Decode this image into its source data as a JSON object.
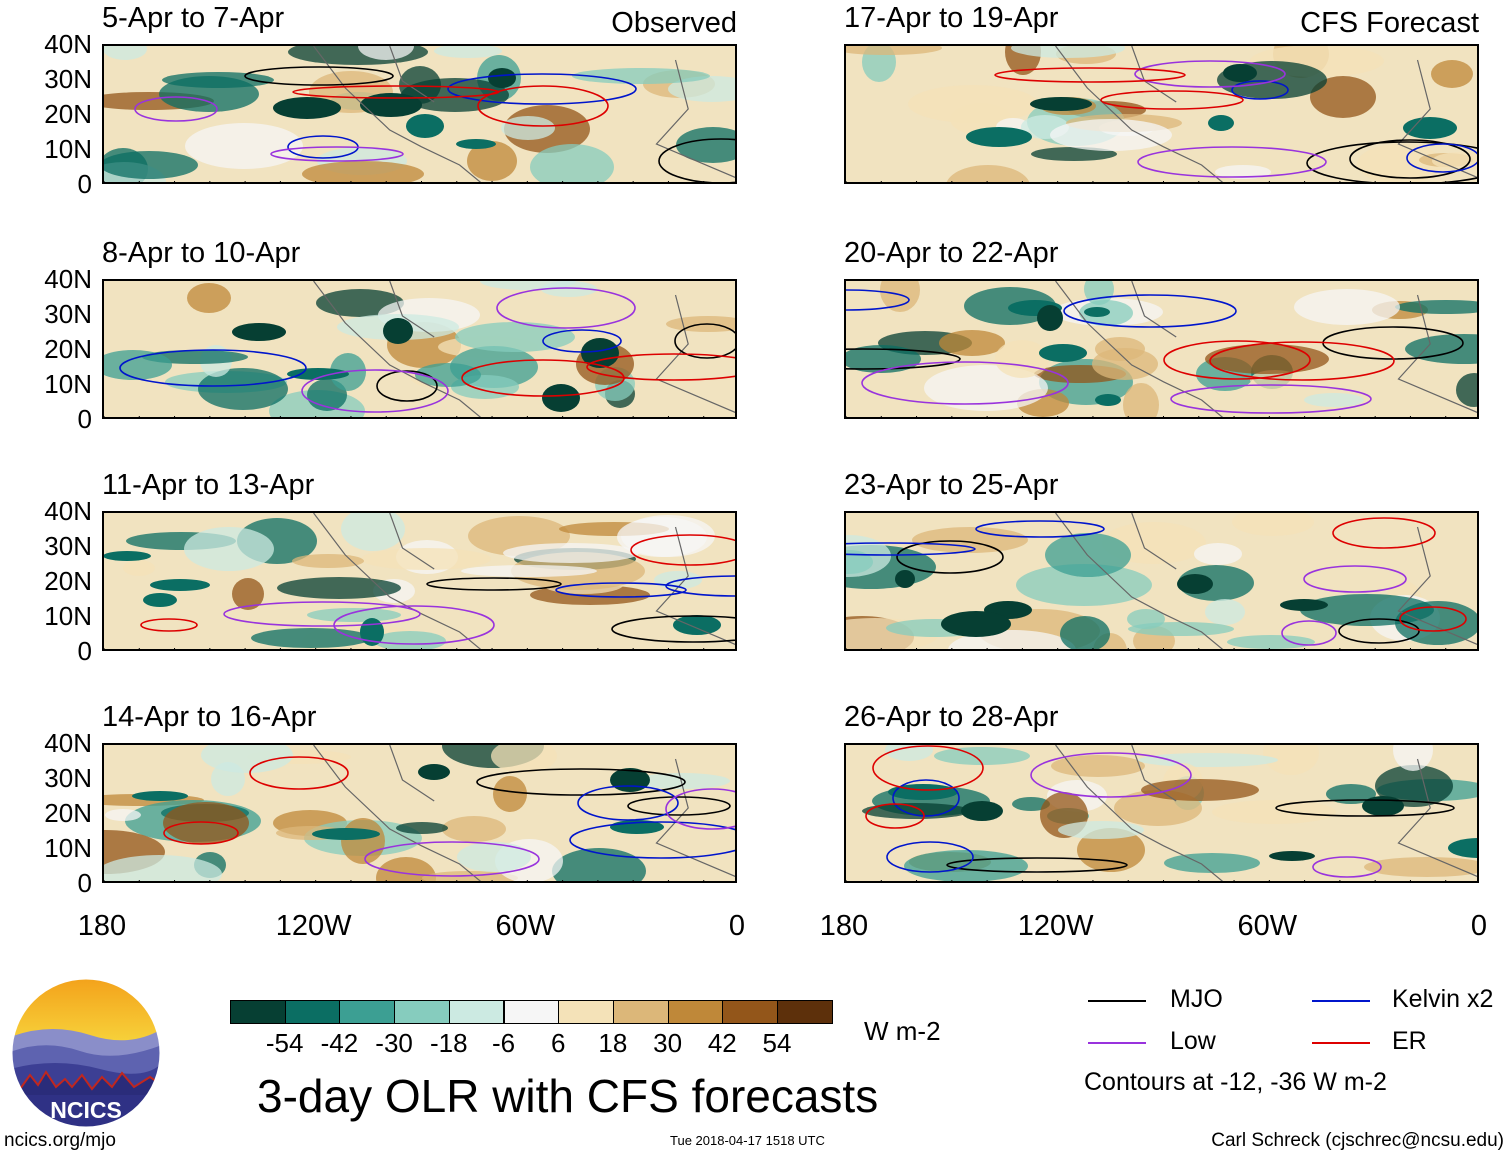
{
  "main_title": "3-day OLR with CFS forecasts",
  "colorbar": {
    "labels": [
      "-54",
      "-42",
      "-30",
      "-18",
      "-6",
      "6",
      "18",
      "30",
      "42",
      "54"
    ],
    "colors": [
      "#063f33",
      "#0b6e63",
      "#3c9f93",
      "#86ccbe",
      "#cceae2",
      "#f6f6f6",
      "#f4e2b8",
      "#dcb779",
      "#bf8839",
      "#93561a",
      "#5d300b"
    ],
    "units": "W m-2"
  },
  "legend": {
    "items": [
      {
        "label": "MJO",
        "color": "#000000"
      },
      {
        "label": "Kelvin x2",
        "color": "#0015cc"
      },
      {
        "label": "Low",
        "color": "#9933dd"
      },
      {
        "label": "ER",
        "color": "#dd0000"
      }
    ],
    "note": "Contours at -12, -36 W m-2"
  },
  "footer": {
    "left": "ncics.org/mjo",
    "center": "Tue 2018-04-17 1518 UTC",
    "right": "Carl Schreck (cjschrec@ncsu.edu)"
  },
  "logo": {
    "text": "NCICS"
  },
  "columns": {
    "left_tag": "Observed",
    "right_tag": "CFS Forecast"
  },
  "axes": {
    "y_ticks": [
      "40N",
      "30N",
      "20N",
      "10N",
      "0"
    ],
    "x_ticks": [
      "180",
      "120W",
      "60W",
      "0"
    ],
    "x_range_lon": [
      -180,
      0
    ],
    "y_range_lat": [
      0,
      40
    ]
  },
  "chart_data": {
    "type": "heatmap",
    "title": "3-day OLR with CFS forecasts",
    "variable": "OLR anomaly (W m-2)",
    "contours_note": "Contours at -12, -36 W m-2",
    "panels": [
      {
        "title": "5-Apr to 7-Apr",
        "source": "Observed"
      },
      {
        "title": "8-Apr to 10-Apr",
        "source": "Observed"
      },
      {
        "title": "11-Apr to 13-Apr",
        "source": "Observed"
      },
      {
        "title": "14-Apr to 16-Apr",
        "source": "Observed"
      },
      {
        "title": "17-Apr to 19-Apr",
        "source": "CFS Forecast"
      },
      {
        "title": "20-Apr to 22-Apr",
        "source": "CFS Forecast"
      },
      {
        "title": "23-Apr to 25-Apr",
        "source": "CFS Forecast"
      },
      {
        "title": "26-Apr to 28-Apr",
        "source": "CFS Forecast"
      }
    ],
    "color_levels": [
      -54,
      -42,
      -30,
      -18,
      -6,
      6,
      18,
      30,
      42,
      54
    ],
    "series": [
      {
        "name": "MJO",
        "color": "#000000"
      },
      {
        "name": "Kelvin x2",
        "color": "#0015cc"
      },
      {
        "name": "Low",
        "color": "#9933dd"
      },
      {
        "name": "ER",
        "color": "#dd0000"
      }
    ]
  }
}
